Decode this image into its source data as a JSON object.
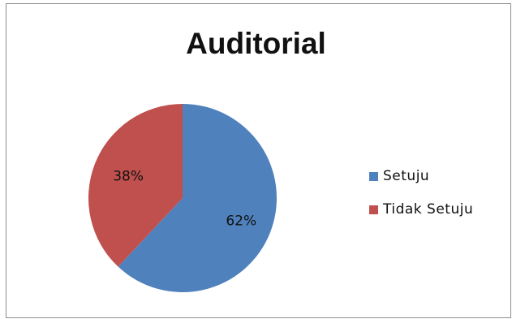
{
  "chart_data": {
    "type": "pie",
    "title": "Auditorial",
    "categories": [
      "Setuju",
      "Tidak Setuju"
    ],
    "values": [
      62,
      38
    ],
    "data_labels": [
      "62%",
      "38%"
    ],
    "colors": [
      "#4f81bd",
      "#c0504d"
    ],
    "legend_position": "right"
  }
}
